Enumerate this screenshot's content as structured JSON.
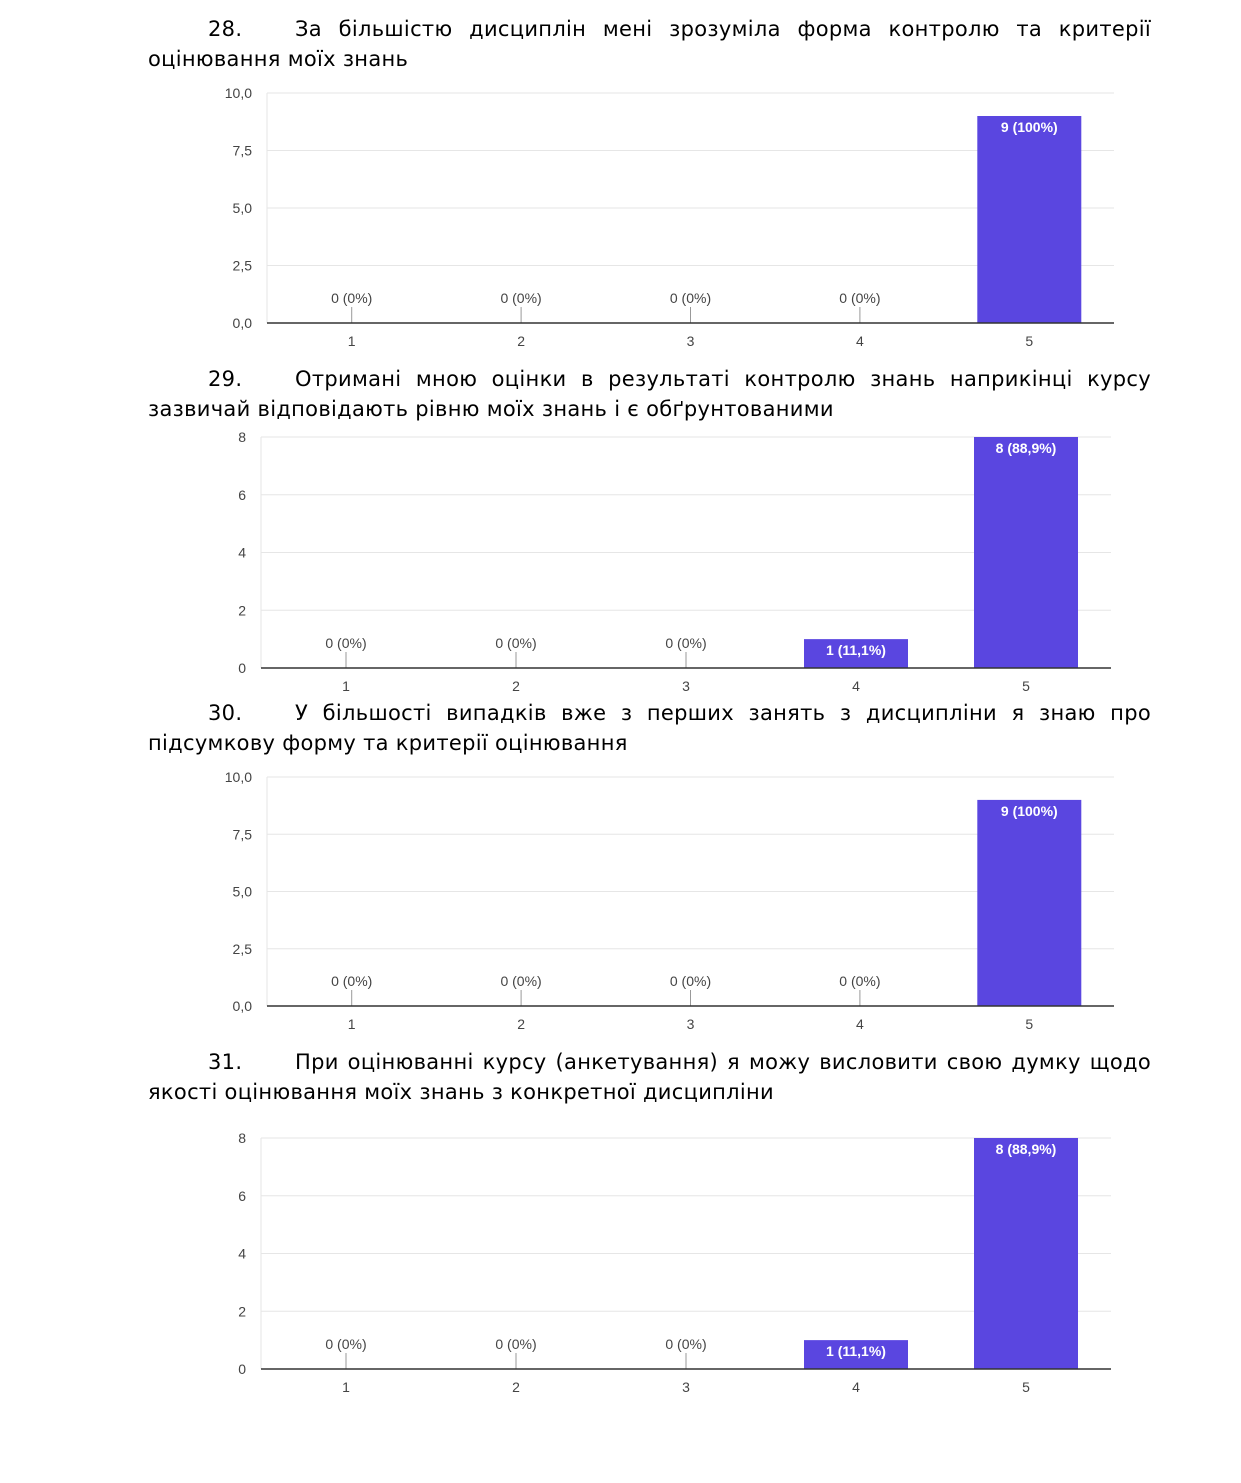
{
  "questions": [
    {
      "number": "28.",
      "line1": "За більшістю дисциплін мені зрозуміла форма контролю та критерії",
      "line2": "оцінювання моїх знань"
    },
    {
      "number": "29.",
      "line1": "Отримані мною оцінки в результаті контролю знань наприкінці курсу",
      "line2": "зазвичай відповідають рівню моїх знань і є обґрунтованими"
    },
    {
      "number": "30.",
      "line1": "У більшості випадків вже з перших занять з дисципліни я знаю про",
      "line2": "підсумкову форму та критерії оцінювання"
    },
    {
      "number": "31.",
      "line1": "При оцінюванні курсу (анкетування) я можу висловити свою думку щодо",
      "line2": "якості оцінювання моїх знань з конкретної дисципліни"
    }
  ],
  "colors": {
    "bar": "#5a46e0",
    "grid": "#e6e6e6",
    "axis": "#333333",
    "tick_text": "#444444"
  },
  "chart_data": [
    {
      "type": "bar",
      "categories": [
        "1",
        "2",
        "3",
        "4",
        "5"
      ],
      "values": [
        0,
        0,
        0,
        0,
        9
      ],
      "data_labels": [
        "0 (0%)",
        "0 (0%)",
        "0 (0%)",
        "0 (0%)",
        "9 (100%)"
      ],
      "ylim": [
        0,
        10
      ],
      "yticks": [
        0,
        2.5,
        5,
        7.5,
        10
      ],
      "ytick_labels": [
        "0,0",
        "2,5",
        "5,0",
        "7,5",
        "10,0"
      ],
      "grid": true
    },
    {
      "type": "bar",
      "categories": [
        "1",
        "2",
        "3",
        "4",
        "5"
      ],
      "values": [
        0,
        0,
        0,
        1,
        8
      ],
      "data_labels": [
        "0 (0%)",
        "0 (0%)",
        "0 (0%)",
        "1 (11,1%)",
        "8 (88,9%)"
      ],
      "ylim": [
        0,
        8
      ],
      "yticks": [
        0,
        2,
        4,
        6,
        8
      ],
      "ytick_labels": [
        "0",
        "2",
        "4",
        "6",
        "8"
      ],
      "grid": true
    },
    {
      "type": "bar",
      "categories": [
        "1",
        "2",
        "3",
        "4",
        "5"
      ],
      "values": [
        0,
        0,
        0,
        0,
        9
      ],
      "data_labels": [
        "0 (0%)",
        "0 (0%)",
        "0 (0%)",
        "0 (0%)",
        "9 (100%)"
      ],
      "ylim": [
        0,
        10
      ],
      "yticks": [
        0,
        2.5,
        5,
        7.5,
        10
      ],
      "ytick_labels": [
        "0,0",
        "2,5",
        "5,0",
        "7,5",
        "10,0"
      ],
      "grid": true
    },
    {
      "type": "bar",
      "categories": [
        "1",
        "2",
        "3",
        "4",
        "5"
      ],
      "values": [
        0,
        0,
        0,
        1,
        8
      ],
      "data_labels": [
        "0 (0%)",
        "0 (0%)",
        "0 (0%)",
        "1 (11,1%)",
        "8 (88,9%)"
      ],
      "ylim": [
        0,
        8
      ],
      "yticks": [
        0,
        2,
        4,
        6,
        8
      ],
      "ytick_labels": [
        "0",
        "2",
        "4",
        "6",
        "8"
      ],
      "grid": true
    }
  ]
}
